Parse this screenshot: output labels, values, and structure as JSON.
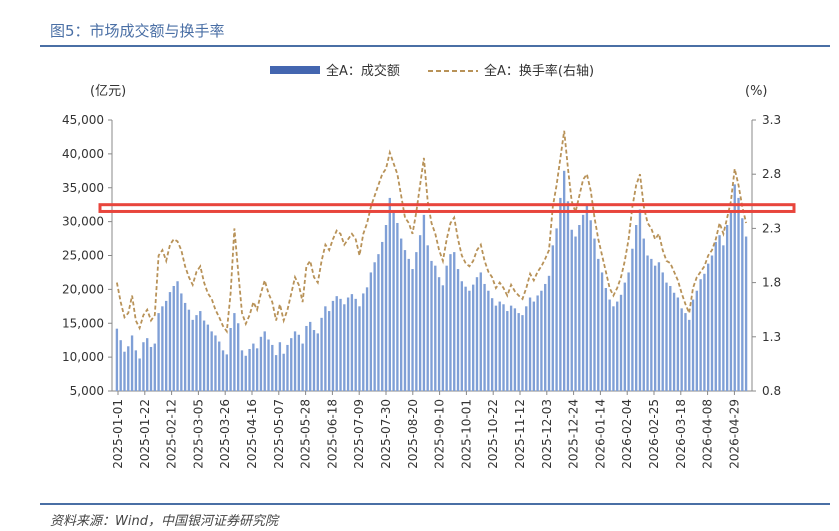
{
  "header": {
    "title": "图5：市场成交额与换手率"
  },
  "footer": {
    "source": "资料来源：Wind，中国银河证券研究院"
  },
  "colors": {
    "bar": "#7f9fd6",
    "bar_legend": "#4466b0",
    "line": "#b89258",
    "highlight": "#e8453c",
    "title": "#4a6fa5"
  },
  "chart_data": {
    "type": "bar",
    "y_unit_label": "(亿元)",
    "y2_unit_label": "(%)",
    "ylim": [
      5000,
      45000
    ],
    "y2lim": [
      0.8,
      3.3
    ],
    "yticks": [
      "5,000",
      "10,000",
      "15,000",
      "20,000",
      "25,000",
      "30,000",
      "35,000",
      "40,000",
      "45,000"
    ],
    "y2ticks": [
      "0.8",
      "1.3",
      "1.8",
      "2.3",
      "2.8",
      "3.3"
    ],
    "xtick_labels": [
      "2025-01-01",
      "2025-01-22",
      "2025-02-12",
      "2025-03-05",
      "2025-03-26",
      "2025-04-16",
      "2025-05-07",
      "2025-05-28",
      "2025-06-18",
      "2025-07-09",
      "2025-07-30",
      "2025-08-20",
      "2025-09-10",
      "2025-10-01",
      "2025-10-22",
      "2025-11-12",
      "2025-12-03",
      "2025-12-24",
      "2026-01-14",
      "2026-02-04",
      "2026-02-25",
      "2026-03-18",
      "2026-04-08",
      "2026-04-29"
    ],
    "legend": [
      {
        "name": "全A：成交额",
        "kind": "bar"
      },
      {
        "name": "全A：换手率(右轴)",
        "kind": "dashed-line"
      }
    ],
    "legend_position": "top",
    "highlight_band": {
      "y_from": 31500,
      "y_to": 32500
    },
    "series": [
      {
        "name": "全A：成交额",
        "axis": "left",
        "values": [
          14200,
          12500,
          10800,
          11600,
          13200,
          11000,
          9800,
          12200,
          12800,
          11500,
          12000,
          16500,
          17500,
          18300,
          19600,
          20500,
          21200,
          19400,
          18000,
          17000,
          15500,
          16200,
          16800,
          15400,
          14800,
          13800,
          13200,
          12300,
          11000,
          10400,
          14300,
          16500,
          15000,
          11000,
          10200,
          11200,
          12000,
          11300,
          13000,
          13800,
          12600,
          11800,
          10300,
          12200,
          10500,
          11800,
          12800,
          13800,
          13300,
          12000,
          14600,
          15200,
          14000,
          13500,
          15800,
          17500,
          16800,
          18300,
          19000,
          18600,
          17800,
          18800,
          19300,
          18600,
          17500,
          19400,
          20300,
          22500,
          24000,
          25200,
          27000,
          29500,
          33500,
          31500,
          29800,
          27500,
          25800,
          24500,
          23000,
          25500,
          28000,
          31000,
          26500,
          24200,
          23500,
          21800,
          20600,
          23500,
          25200,
          25500,
          23000,
          21200,
          20400,
          19800,
          20700,
          21800,
          22500,
          20800,
          19800,
          18700,
          17600,
          18200,
          17800,
          16800,
          17600,
          17200,
          16500,
          16200,
          17500,
          18800,
          18200,
          19100,
          19800,
          20800,
          22000,
          26500,
          29000,
          33500,
          37500,
          33000,
          28800,
          27800,
          29500,
          31000,
          32500,
          30200,
          27500,
          24500,
          22500,
          20200,
          18500,
          17500,
          18200,
          19200,
          21000,
          22500,
          26000,
          29500,
          31800,
          27500,
          25000,
          24500,
          23500,
          24000,
          22500,
          21000,
          20500,
          19500,
          18800,
          17200,
          16500,
          15500,
          18500,
          19800,
          21500,
          22300,
          23800,
          25000,
          27000,
          28000,
          26500,
          29500,
          31500,
          35500,
          33500,
          30500,
          27800
        ]
      },
      {
        "name": "全A：换手率(右轴)",
        "axis": "right",
        "values": [
          1.8,
          1.62,
          1.48,
          1.52,
          1.68,
          1.45,
          1.38,
          1.5,
          1.55,
          1.45,
          1.5,
          2.05,
          2.1,
          2.0,
          2.15,
          2.2,
          2.18,
          2.1,
          1.95,
          1.85,
          1.78,
          1.9,
          1.95,
          1.8,
          1.7,
          1.65,
          1.55,
          1.48,
          1.4,
          1.35,
          1.7,
          2.3,
          1.9,
          1.52,
          1.42,
          1.5,
          1.62,
          1.55,
          1.7,
          1.82,
          1.7,
          1.62,
          1.45,
          1.6,
          1.45,
          1.55,
          1.7,
          1.85,
          1.78,
          1.62,
          1.95,
          2.0,
          1.85,
          1.8,
          2.0,
          2.15,
          2.1,
          2.2,
          2.28,
          2.25,
          2.15,
          2.2,
          2.25,
          2.2,
          2.05,
          2.25,
          2.35,
          2.5,
          2.6,
          2.7,
          2.8,
          2.85,
          3.0,
          2.9,
          2.8,
          2.6,
          2.4,
          2.35,
          2.25,
          2.45,
          2.7,
          2.95,
          2.55,
          2.35,
          2.25,
          2.1,
          2.0,
          2.2,
          2.35,
          2.4,
          2.2,
          2.05,
          1.98,
          1.95,
          2.0,
          2.1,
          2.15,
          2.0,
          1.9,
          1.85,
          1.75,
          1.8,
          1.75,
          1.68,
          1.78,
          1.72,
          1.68,
          1.65,
          1.75,
          1.88,
          1.82,
          1.9,
          1.95,
          2.02,
          2.1,
          2.5,
          2.7,
          2.95,
          3.2,
          2.85,
          2.55,
          2.45,
          2.6,
          2.75,
          2.8,
          2.65,
          2.4,
          2.2,
          2.05,
          1.9,
          1.75,
          1.68,
          1.75,
          1.85,
          2.0,
          2.2,
          2.5,
          2.7,
          2.8,
          2.5,
          2.35,
          2.3,
          2.2,
          2.25,
          2.1,
          2.0,
          1.98,
          1.9,
          1.82,
          1.7,
          1.6,
          1.52,
          1.75,
          1.85,
          1.9,
          1.95,
          2.05,
          2.1,
          2.2,
          2.35,
          2.25,
          2.4,
          2.55,
          2.85,
          2.7,
          2.5,
          2.35
        ]
      }
    ]
  }
}
